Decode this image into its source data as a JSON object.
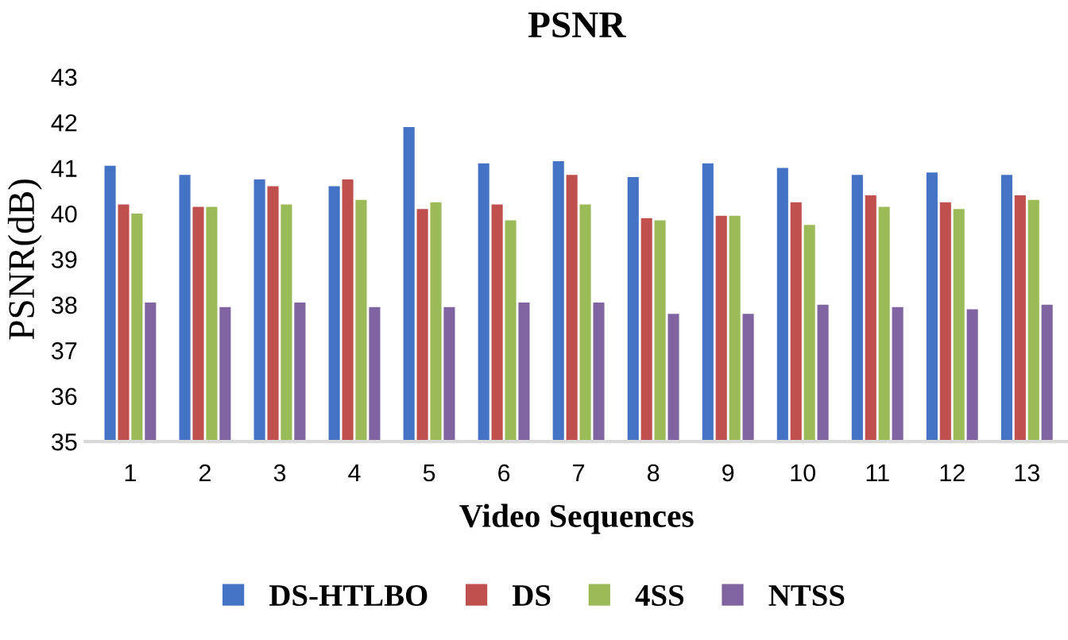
{
  "chart_data": {
    "type": "bar",
    "title": "PSNR",
    "xlabel": "Video Sequences",
    "ylabel": "PSNR(dB)",
    "categories": [
      "1",
      "2",
      "3",
      "4",
      "5",
      "6",
      "7",
      "8",
      "9",
      "10",
      "11",
      "12",
      "13"
    ],
    "series": [
      {
        "name": "DS-HTLBO",
        "color": "#4472c4",
        "values": [
          41.05,
          40.85,
          40.75,
          40.6,
          41.9,
          41.1,
          41.15,
          40.8,
          41.1,
          41.0,
          40.85,
          40.9,
          40.85
        ]
      },
      {
        "name": "DS",
        "color": "#c0504d",
        "values": [
          40.2,
          40.15,
          40.6,
          40.75,
          40.1,
          40.2,
          40.85,
          39.9,
          39.95,
          40.25,
          40.4,
          40.25,
          40.4
        ]
      },
      {
        "name": "4SS",
        "color": "#9bbb59",
        "values": [
          40.0,
          40.15,
          40.2,
          40.3,
          40.25,
          39.85,
          40.2,
          39.85,
          39.95,
          39.75,
          40.15,
          40.1,
          40.3
        ]
      },
      {
        "name": "NTSS",
        "color": "#8064a2",
        "values": [
          38.05,
          37.95,
          38.05,
          37.95,
          37.95,
          38.05,
          38.05,
          37.8,
          37.8,
          38.0,
          37.95,
          37.9,
          38.0
        ]
      }
    ],
    "ylim": [
      35,
      43
    ],
    "yticks": [
      35,
      36,
      37,
      38,
      39,
      40,
      41,
      42,
      43
    ],
    "grid": false,
    "legend": "bottom"
  }
}
